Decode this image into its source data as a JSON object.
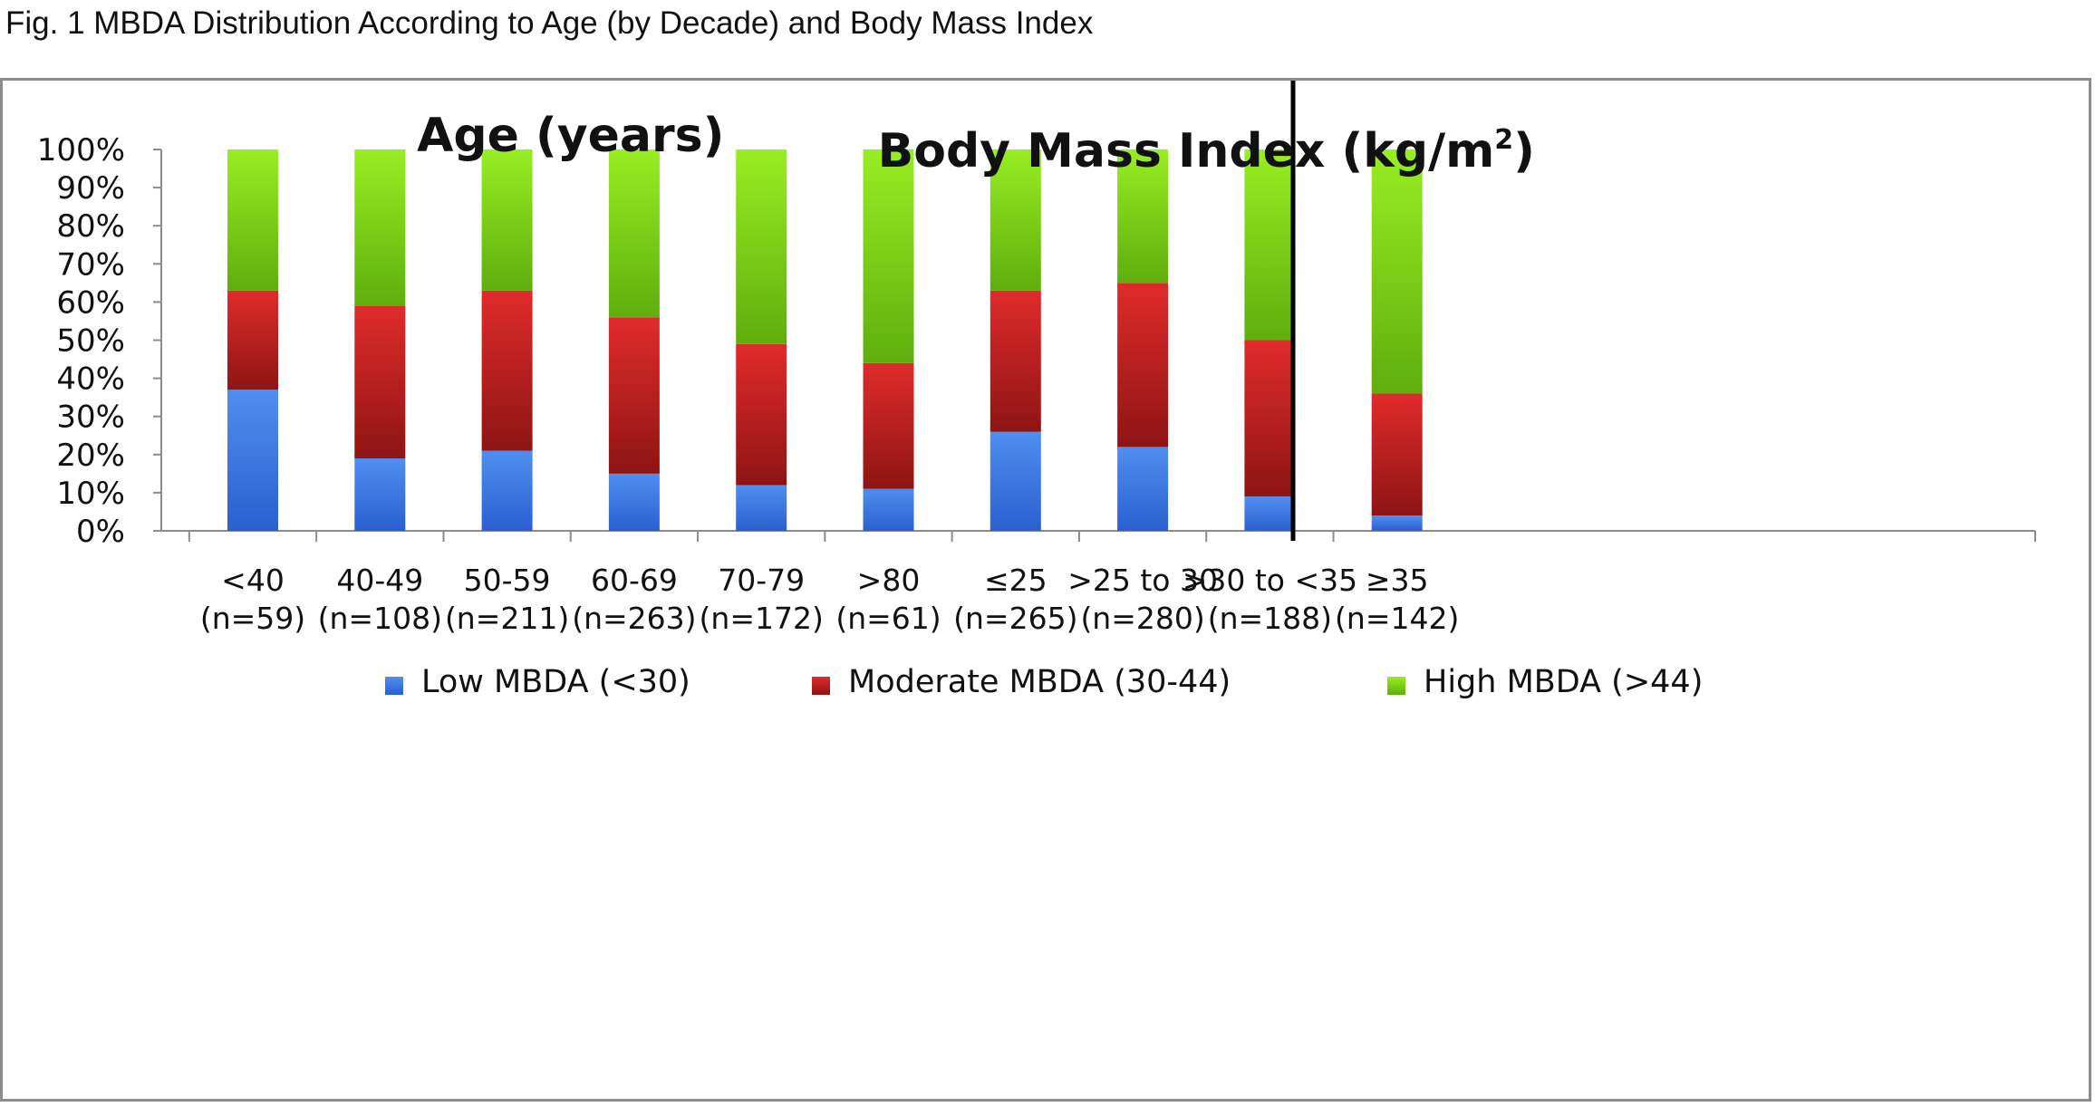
{
  "caption": "Fig. 1 MBDA Distribution According to Age (by Decade) and Body Mass Index",
  "chart_data": {
    "type": "bar",
    "stacked": true,
    "percent": true,
    "panels": [
      {
        "title": "Age (years)",
        "title_sup": "",
        "title_suffix": "",
        "start": 0,
        "count": 6
      },
      {
        "title": "Body Mass Index (kg/m",
        "title_sup": "2",
        "title_suffix": ")",
        "start": 6,
        "count": 4
      }
    ],
    "categories": [
      {
        "label": "<40",
        "n": "(n=59)"
      },
      {
        "label": "40-49",
        "n": "(n=108)"
      },
      {
        "label": "50-59",
        "n": "(n=211)"
      },
      {
        "label": "60-69",
        "n": "(n=263)"
      },
      {
        "label": "70-79",
        "n": "(n=172)"
      },
      {
        "label": ">80",
        "n": "(n=61)"
      },
      {
        "label": "≤25",
        "n": "(n=265)"
      },
      {
        "label": ">25 to 30",
        "n": "(n=280)"
      },
      {
        "label": ">30 to <35",
        "n": "(n=188)"
      },
      {
        "label": "≥35",
        "n": "(n=142)"
      }
    ],
    "series": [
      {
        "name": "Low MBDA (<30)",
        "color_top": "#4f8ff0",
        "color_bottom": "#2a5fd0",
        "values": [
          37,
          19,
          21,
          15,
          12,
          11,
          26,
          22,
          9,
          4
        ]
      },
      {
        "name": "Moderate MBDA (30-44)",
        "color_top": "#e02b2b",
        "color_bottom": "#8e1414",
        "values": [
          26,
          40,
          42,
          41,
          37,
          33,
          37,
          43,
          41,
          32
        ]
      },
      {
        "name": "High MBDA (>44)",
        "color_top": "#98ee22",
        "color_bottom": "#5fae0e",
        "values": [
          37,
          41,
          37,
          44,
          51,
          56,
          37,
          35,
          50,
          64
        ]
      }
    ],
    "y_ticks": [
      "0%",
      "10%",
      "20%",
      "30%",
      "40%",
      "50%",
      "60%",
      "70%",
      "80%",
      "90%",
      "100%"
    ],
    "ylim": [
      0,
      100
    ],
    "legend_position": "bottom"
  }
}
